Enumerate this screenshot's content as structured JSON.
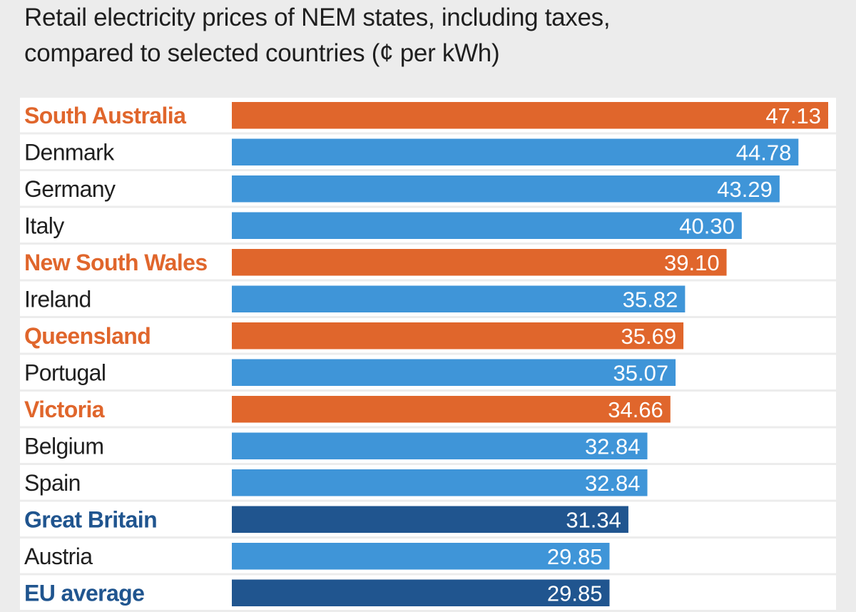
{
  "chart_data": {
    "type": "bar",
    "orientation": "horizontal",
    "title_lines": [
      "Retail electricity prices of NEM states, including taxes,",
      "compared to selected countries (¢ per kWh)"
    ],
    "xlim": [
      0,
      47.13
    ],
    "unit": "¢ per kWh",
    "colors": {
      "nem_state": "#e0662c",
      "country": "#3f95d8",
      "benchmark": "#20558f",
      "country_label": "#1f1f1f"
    },
    "rows": [
      {
        "label": "South Australia",
        "value": 47.13,
        "value_label": "47.13",
        "group": "nem_state"
      },
      {
        "label": "Denmark",
        "value": 44.78,
        "value_label": "44.78",
        "group": "country"
      },
      {
        "label": "Germany",
        "value": 43.29,
        "value_label": "43.29",
        "group": "country"
      },
      {
        "label": "Italy",
        "value": 40.3,
        "value_label": "40.30",
        "group": "country"
      },
      {
        "label": "New South Wales",
        "value": 39.1,
        "value_label": "39.10",
        "group": "nem_state"
      },
      {
        "label": "Ireland",
        "value": 35.82,
        "value_label": "35.82",
        "group": "country"
      },
      {
        "label": "Queensland",
        "value": 35.69,
        "value_label": "35.69",
        "group": "nem_state"
      },
      {
        "label": "Portugal",
        "value": 35.07,
        "value_label": "35.07",
        "group": "country"
      },
      {
        "label": "Victoria",
        "value": 34.66,
        "value_label": "34.66",
        "group": "nem_state"
      },
      {
        "label": "Belgium",
        "value": 32.84,
        "value_label": "32.84",
        "group": "country"
      },
      {
        "label": "Spain",
        "value": 32.84,
        "value_label": "32.84",
        "group": "country"
      },
      {
        "label": "Great Britain",
        "value": 31.34,
        "value_label": "31.34",
        "group": "benchmark"
      },
      {
        "label": "Austria",
        "value": 29.85,
        "value_label": "29.85",
        "group": "country"
      },
      {
        "label": "EU average",
        "value": 29.85,
        "value_label": "29.85",
        "group": "benchmark"
      }
    ]
  }
}
